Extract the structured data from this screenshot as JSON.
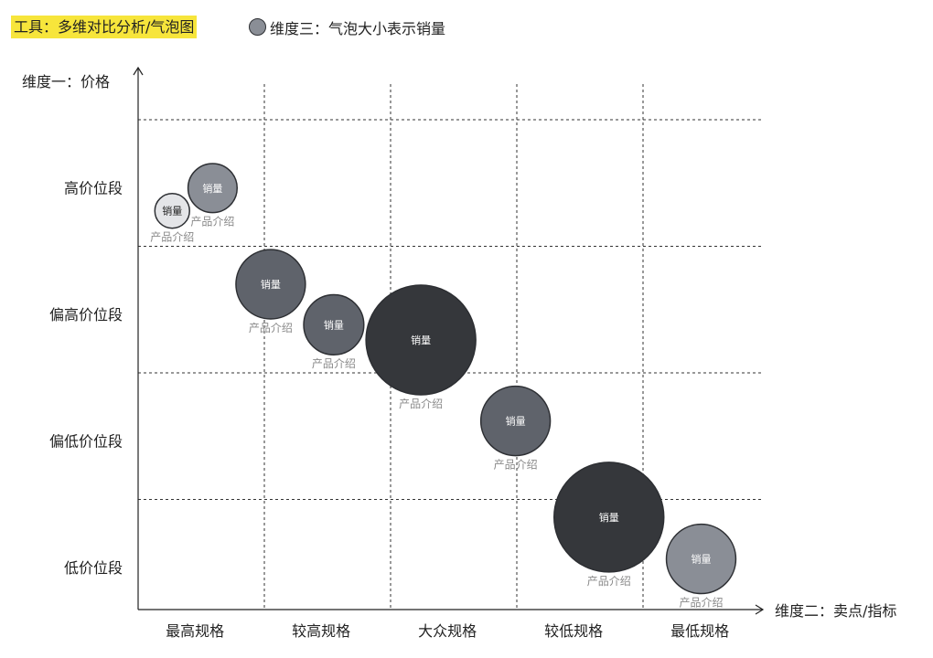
{
  "header": {
    "tool_label": "工具：多维对比分析/气泡图",
    "legend_text": "维度三：气泡大小表示销量"
  },
  "chart_data": {
    "type": "bubble",
    "y_axis_title": "维度一：价格",
    "x_axis_title": "维度二：卖点/指标",
    "x_categories": [
      "最高规格",
      "较高规格",
      "大众规格",
      "较低规格",
      "最低规格"
    ],
    "y_categories": [
      "高价位段",
      "偏高价位段",
      "偏低价位段",
      "低价位段"
    ],
    "grid": "dashed",
    "bubble_label": "销量",
    "bubble_caption": "产品介绍",
    "bubbles": [
      {
        "x": 0.27,
        "y": 0.72,
        "size": 1,
        "color": "#e4e5e8",
        "label": "销量",
        "caption": "产品介绍"
      },
      {
        "x": 0.59,
        "y": 0.54,
        "size": 2,
        "color": "#8a8e96",
        "label": "销量",
        "caption": "产品介绍"
      },
      {
        "x": 1.05,
        "y": 1.3,
        "size": 4,
        "color": "#5f636b",
        "label": "销量",
        "caption": "产品介绍"
      },
      {
        "x": 1.55,
        "y": 1.62,
        "size": 3,
        "color": "#5f636b",
        "label": "销量",
        "caption": "产品介绍"
      },
      {
        "x": 2.24,
        "y": 1.74,
        "size": 10,
        "color": "#35373b",
        "label": "销量",
        "caption": "产品介绍"
      },
      {
        "x": 2.99,
        "y": 2.38,
        "size": 4,
        "color": "#5f636b",
        "label": "销量",
        "caption": "产品介绍"
      },
      {
        "x": 3.73,
        "y": 3.14,
        "size": 10,
        "color": "#35373b",
        "label": "销量",
        "caption": "产品介绍"
      },
      {
        "x": 4.46,
        "y": 3.47,
        "size": 4,
        "color": "#8a8e96",
        "label": "销量",
        "caption": "产品介绍"
      }
    ]
  }
}
